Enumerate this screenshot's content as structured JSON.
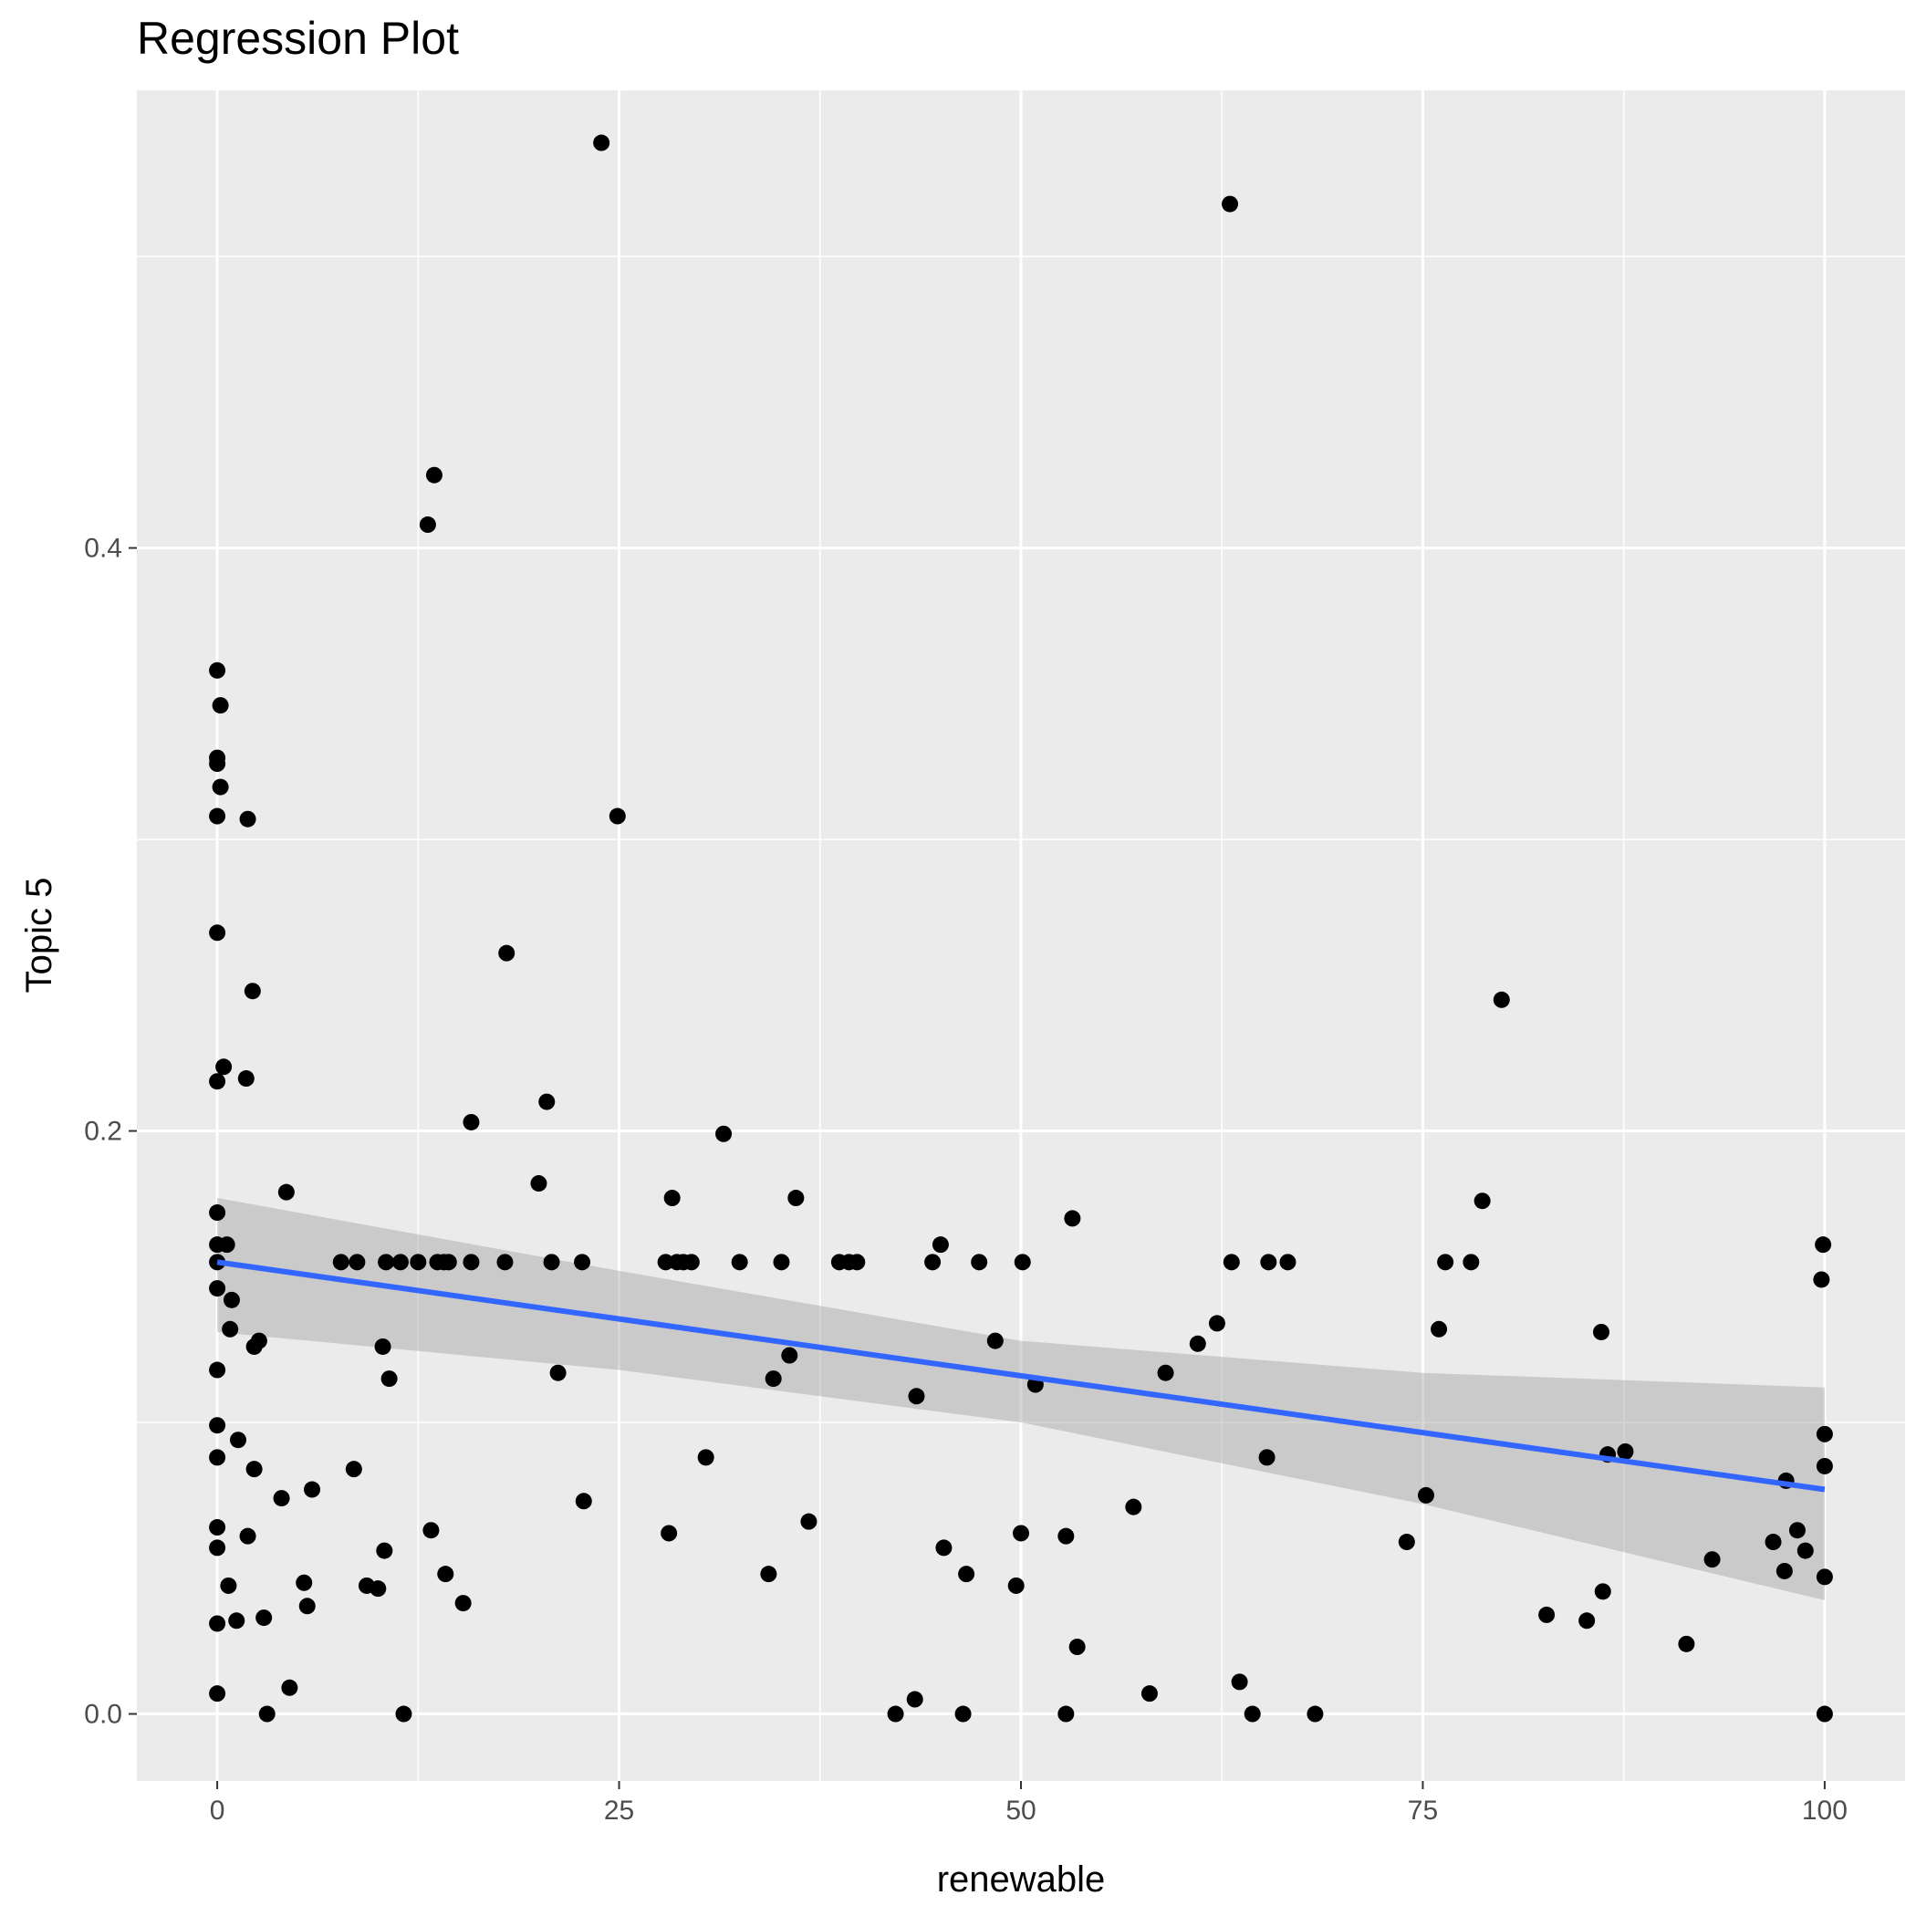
{
  "chart_data": {
    "type": "scatter",
    "title": "Regression Plot",
    "xlabel": "renewable",
    "ylabel": "Topic 5",
    "xlim": [
      -5,
      105
    ],
    "ylim": [
      -0.023,
      0.557
    ],
    "x_ticks": [
      0,
      25,
      50,
      75,
      100
    ],
    "x_tick_labels": [
      "0",
      "25",
      "50",
      "75",
      "100"
    ],
    "y_ticks": [
      0.0,
      0.2,
      0.4
    ],
    "y_tick_labels": [
      "0.0",
      "0.2",
      "0.4"
    ],
    "x_minor_ticks": [
      12.5,
      37.5,
      62.5,
      87.5
    ],
    "y_minor_ticks": [
      0.1,
      0.3,
      0.5
    ],
    "grid": true,
    "legend": "none",
    "colors": {
      "panel_background": "#ebebeb",
      "grid": "#ffffff",
      "points": "#000000",
      "fit_line": "#3366ff",
      "confidence_band": "#999999",
      "tick_label": "#4d4d4d",
      "text": "#000000"
    },
    "points": [
      [
        0,
        0.358
      ],
      [
        0.2,
        0.346
      ],
      [
        0,
        0.328
      ],
      [
        0,
        0.326
      ],
      [
        0.2,
        0.318
      ],
      [
        0,
        0.308
      ],
      [
        1.9,
        0.307
      ],
      [
        0,
        0.268
      ],
      [
        0,
        0.217
      ],
      [
        0.4,
        0.222
      ],
      [
        1.8,
        0.218
      ],
      [
        2.2,
        0.248
      ],
      [
        0,
        0.172
      ],
      [
        0,
        0.161
      ],
      [
        0,
        0.155
      ],
      [
        0,
        0.146
      ],
      [
        0.6,
        0.161
      ],
      [
        0.9,
        0.142
      ],
      [
        0.8,
        0.132
      ],
      [
        0,
        0.118
      ],
      [
        2.3,
        0.126
      ],
      [
        2.6,
        0.128
      ],
      [
        0,
        0.099
      ],
      [
        0,
        0.088
      ],
      [
        1.3,
        0.094
      ],
      [
        2.3,
        0.084
      ],
      [
        0,
        0.064
      ],
      [
        0,
        0.057
      ],
      [
        1.9,
        0.061
      ],
      [
        0,
        0.031
      ],
      [
        0.7,
        0.044
      ],
      [
        1.2,
        0.032
      ],
      [
        2.9,
        0.033
      ],
      [
        0,
        0.007
      ],
      [
        3.1,
        0
      ],
      [
        4.5,
        0.009
      ],
      [
        4.3,
        0.179
      ],
      [
        4.0,
        0.074
      ],
      [
        5.9,
        0.077
      ],
      [
        5.4,
        0.045
      ],
      [
        5.6,
        0.037
      ],
      [
        7.7,
        0.155
      ],
      [
        8.7,
        0.155
      ],
      [
        8.5,
        0.084
      ],
      [
        9.3,
        0.044
      ],
      [
        10.0,
        0.043
      ],
      [
        10.3,
        0.126
      ],
      [
        10.5,
        0.155
      ],
      [
        10.7,
        0.115
      ],
      [
        10.4,
        0.056
      ],
      [
        11.4,
        0.155
      ],
      [
        11.6,
        0
      ],
      [
        12.5,
        0.155
      ],
      [
        13.1,
        0.408
      ],
      [
        13.5,
        0.425
      ],
      [
        13.3,
        0.063
      ],
      [
        13.7,
        0.155
      ],
      [
        14.1,
        0.155
      ],
      [
        14.4,
        0.155
      ],
      [
        14.2,
        0.048
      ],
      [
        15.3,
        0.038
      ],
      [
        15.8,
        0.203
      ],
      [
        15.8,
        0.155
      ],
      [
        18.0,
        0.261
      ],
      [
        17.9,
        0.155
      ],
      [
        20.0,
        0.182
      ],
      [
        20.5,
        0.21
      ],
      [
        20.8,
        0.155
      ],
      [
        21.2,
        0.117
      ],
      [
        22.7,
        0.155
      ],
      [
        22.8,
        0.073
      ],
      [
        23.9,
        0.539
      ],
      [
        24.9,
        0.308
      ],
      [
        27.9,
        0.155
      ],
      [
        28.1,
        0.062
      ],
      [
        28.3,
        0.177
      ],
      [
        28.6,
        0.155
      ],
      [
        29.0,
        0.155
      ],
      [
        29.5,
        0.155
      ],
      [
        30.4,
        0.088
      ],
      [
        31.5,
        0.199
      ],
      [
        32.5,
        0.155
      ],
      [
        34.3,
        0.048
      ],
      [
        34.6,
        0.115
      ],
      [
        35.1,
        0.155
      ],
      [
        35.6,
        0.123
      ],
      [
        36.0,
        0.177
      ],
      [
        36.8,
        0.066
      ],
      [
        38.7,
        0.155
      ],
      [
        39.3,
        0.155
      ],
      [
        39.8,
        0.155
      ],
      [
        42.2,
        0
      ],
      [
        43.4,
        0.005
      ],
      [
        43.5,
        0.109
      ],
      [
        44.5,
        0.155
      ],
      [
        45.0,
        0.161
      ],
      [
        45.2,
        0.057
      ],
      [
        46.4,
        0
      ],
      [
        46.6,
        0.048
      ],
      [
        47.4,
        0.155
      ],
      [
        48.4,
        0.128
      ],
      [
        49.7,
        0.044
      ],
      [
        50.0,
        0.062
      ],
      [
        50.1,
        0.155
      ],
      [
        50.9,
        0.113
      ],
      [
        52.8,
        0.061
      ],
      [
        52.8,
        0
      ],
      [
        53.2,
        0.17
      ],
      [
        53.5,
        0.023
      ],
      [
        57.0,
        0.071
      ],
      [
        58.0,
        0.007
      ],
      [
        59.0,
        0.117
      ],
      [
        61.0,
        0.127
      ],
      [
        62.2,
        0.134
      ],
      [
        63.1,
        0.155
      ],
      [
        63.0,
        0.518
      ],
      [
        63.6,
        0.011
      ],
      [
        64.4,
        0
      ],
      [
        65.3,
        0.088
      ],
      [
        65.4,
        0.155
      ],
      [
        66.6,
        0.155
      ],
      [
        68.3,
        0
      ],
      [
        74.0,
        0.059
      ],
      [
        75.2,
        0.075
      ],
      [
        76.0,
        0.132
      ],
      [
        76.4,
        0.155
      ],
      [
        78.0,
        0.155
      ],
      [
        78.7,
        0.176
      ],
      [
        79.9,
        0.245
      ],
      [
        82.7,
        0.034
      ],
      [
        85.2,
        0.032
      ],
      [
        86.1,
        0.131
      ],
      [
        86.2,
        0.042
      ],
      [
        86.5,
        0.089
      ],
      [
        87.6,
        0.09
      ],
      [
        91.4,
        0.024
      ],
      [
        93.0,
        0.053
      ],
      [
        96.8,
        0.059
      ],
      [
        97.6,
        0.08
      ],
      [
        97.5,
        0.049
      ],
      [
        98.3,
        0.063
      ],
      [
        98.8,
        0.056
      ],
      [
        99.8,
        0.149
      ],
      [
        99.9,
        0.161
      ],
      [
        100,
        0.096
      ],
      [
        100,
        0.085
      ],
      [
        100,
        0.047
      ],
      [
        100,
        0
      ]
    ],
    "fit_line": {
      "x": [
        0,
        100
      ],
      "y": [
        0.155,
        0.077
      ]
    },
    "confidence_band": {
      "x": [
        0,
        25,
        50,
        75,
        100
      ],
      "lower": [
        0.131,
        0.118,
        0.1,
        0.072,
        0.039
      ],
      "upper": [
        0.177,
        0.152,
        0.128,
        0.117,
        0.112
      ]
    }
  }
}
